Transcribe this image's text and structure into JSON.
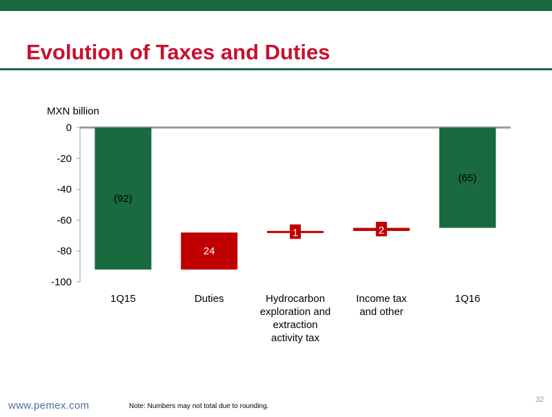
{
  "slide": {
    "title": "Evolution of Taxes and Duties",
    "footer_url": "www.pemex.com",
    "footer_note": "Note: Numbers may not total due to rounding.",
    "page_number": "32"
  },
  "colors": {
    "brand_green": "#1a6a3f",
    "brand_red": "#c8102e",
    "bar_red": "#c00000"
  },
  "chart_data": {
    "type": "bar",
    "subtype": "waterfall",
    "ylabel": "MXN billion",
    "ylim": [
      -100,
      0
    ],
    "yticks": [
      0,
      -20,
      -40,
      -60,
      -80,
      -100
    ],
    "grid": false,
    "categories": [
      [
        "1Q15"
      ],
      [
        "Duties"
      ],
      [
        "Hydrocarbon",
        "exploration and",
        "extraction",
        "activity tax"
      ],
      [
        "Income tax",
        "and other"
      ],
      [
        "1Q16"
      ]
    ],
    "bars": [
      {
        "kind": "total",
        "base": 0,
        "top": -92,
        "label": "(92)",
        "color": "#1a6a3f"
      },
      {
        "kind": "delta",
        "base": -92,
        "top": -68,
        "label": "24",
        "color": "#c00000"
      },
      {
        "kind": "delta",
        "base": -68,
        "top": -67,
        "label": "1",
        "color": "#c00000"
      },
      {
        "kind": "delta",
        "base": -67,
        "top": -65,
        "label": "2",
        "color": "#c00000"
      },
      {
        "kind": "total",
        "base": 0,
        "top": -65,
        "label": "(65)",
        "color": "#1a6a3f"
      }
    ]
  }
}
